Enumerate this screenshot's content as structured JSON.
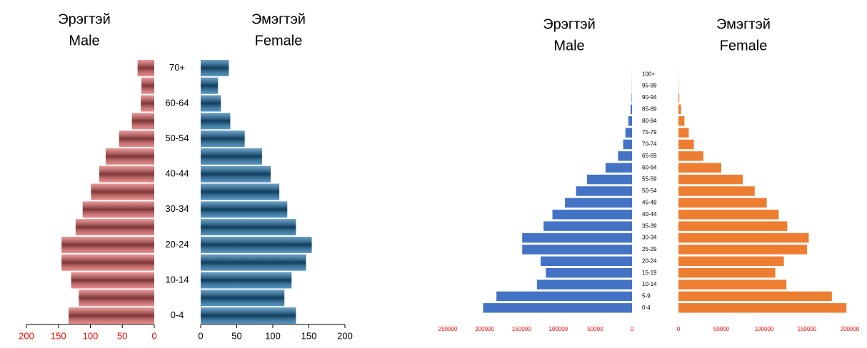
{
  "chart_data": [
    {
      "type": "pyramid",
      "categories": [
        "0-4",
        null,
        "10-14",
        null,
        "20-24",
        null,
        "30-34",
        null,
        "40-44",
        null,
        "50-54",
        null,
        "60-64",
        null,
        "70+"
      ],
      "series": [
        {
          "name": "Male",
          "name_mn": "Эрэгтэй",
          "color": "#e06060",
          "tick_color": "#ff0000",
          "values": [
            134,
            118,
            130,
            145,
            145,
            123,
            112,
            99,
            86,
            76,
            55,
            35,
            21,
            20,
            26
          ],
          "xlim": [
            200,
            0
          ],
          "xticks": [
            200,
            150,
            100,
            50,
            0
          ]
        },
        {
          "name": "Female",
          "name_mn": "Эмэгтэй",
          "color": "#1a6ea8",
          "tick_color": "#000000",
          "values": [
            132,
            116,
            126,
            146,
            154,
            132,
            120,
            109,
            97,
            85,
            61,
            41,
            28,
            24,
            39
          ],
          "xlim": [
            0,
            200
          ],
          "xticks": [
            0,
            50,
            100,
            150,
            200
          ]
        }
      ]
    },
    {
      "type": "pyramid",
      "categories": [
        "0-4",
        "5-9",
        "10-14",
        "15-19",
        "20-24",
        "25-29",
        "30-34",
        "35-39",
        "40-44",
        "45-49",
        "50-54",
        "55-59",
        "60-64",
        "65-69",
        "70-74",
        "75-79",
        "80-84",
        "85-89",
        "90-94",
        "95-99",
        "100+"
      ],
      "series": [
        {
          "name": "Male",
          "name_mn": "Эрэгтэй",
          "color": "#4472c4",
          "tick_color": "#ff0000",
          "values": [
            202000,
            184000,
            129000,
            117000,
            124000,
            149000,
            149000,
            120000,
            108000,
            91000,
            76000,
            61000,
            36000,
            19000,
            12000,
            9000,
            5000,
            2000,
            500,
            200,
            100
          ],
          "xlim": [
            250000,
            0
          ],
          "xticks": [
            250000,
            200000,
            150000,
            100000,
            50000,
            0
          ]
        },
        {
          "name": "Female",
          "name_mn": "Эмэгтэй",
          "color": "#ed7d31",
          "tick_color": "#ff0000",
          "values": [
            196000,
            179000,
            126000,
            113000,
            123000,
            150000,
            152000,
            127000,
            117000,
            103000,
            89000,
            75000,
            50000,
            29000,
            18000,
            12000,
            7000,
            3000,
            1000,
            300,
            100
          ],
          "xlim": [
            0,
            200000
          ],
          "xticks": [
            0,
            50000,
            100000,
            150000,
            200000
          ]
        }
      ]
    }
  ]
}
